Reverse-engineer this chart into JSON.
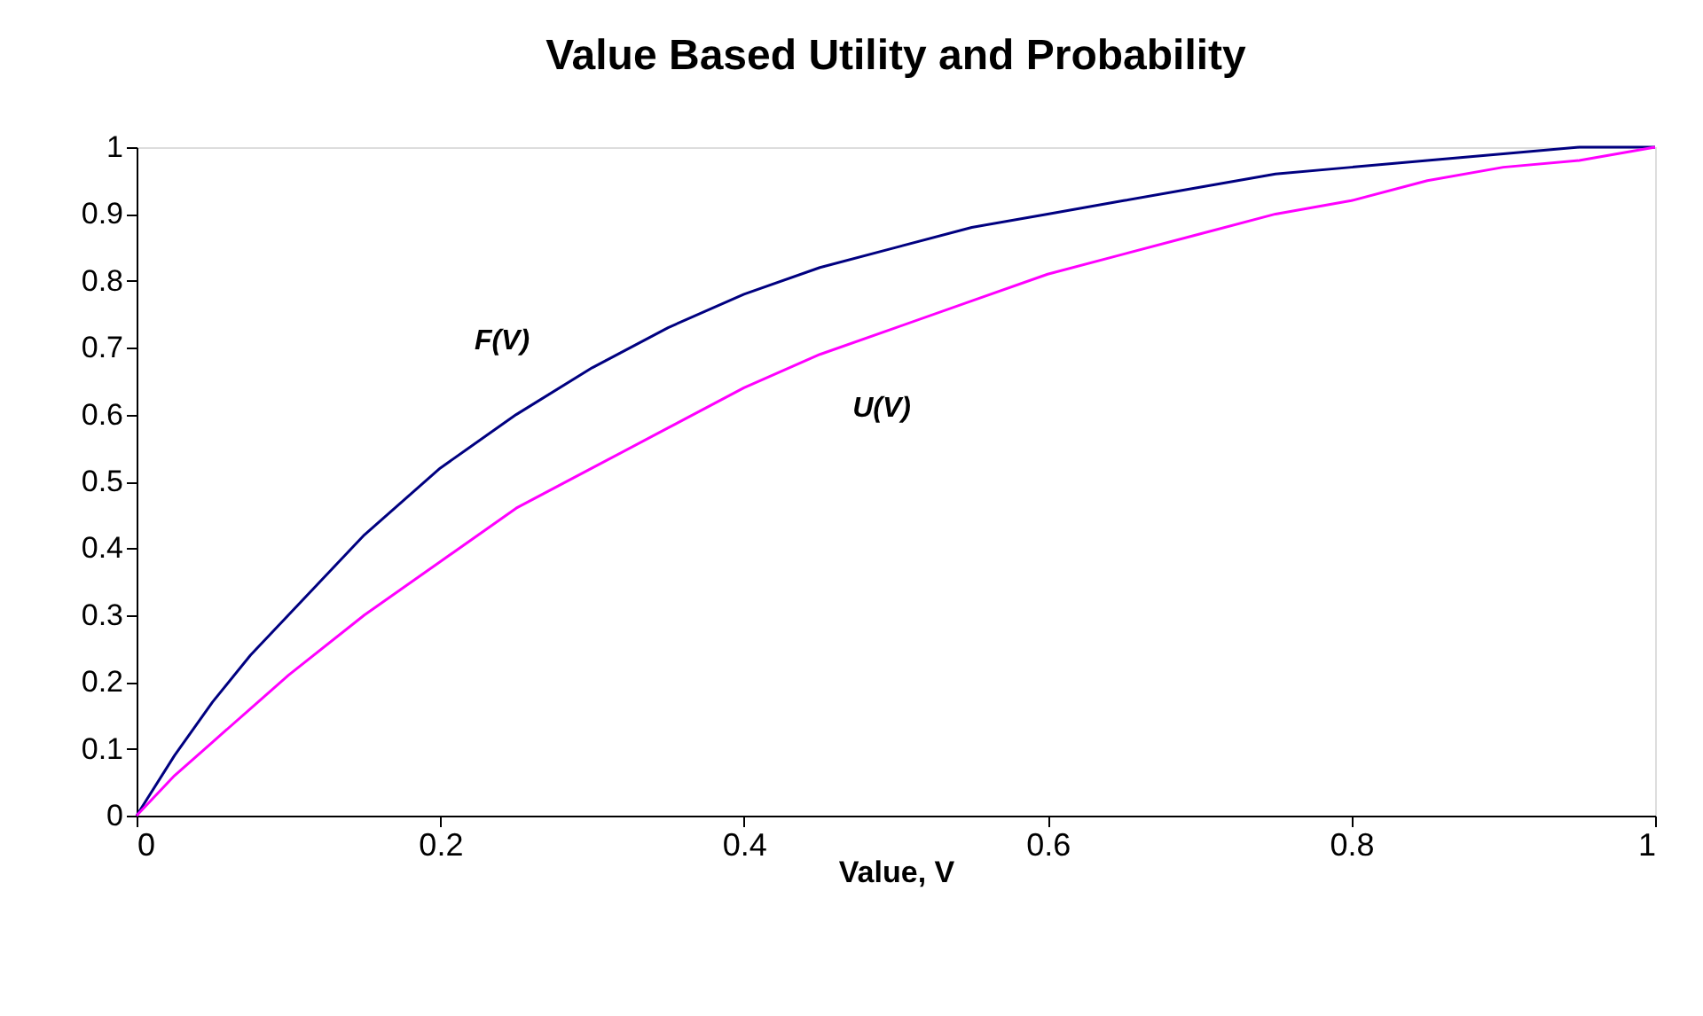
{
  "chart_data": {
    "type": "line",
    "title": "Value Based Utility and Probability",
    "xlabel": "Value, V",
    "x": [
      0,
      0.025,
      0.05,
      0.075,
      0.1,
      0.15,
      0.2,
      0.25,
      0.3,
      0.35,
      0.4,
      0.45,
      0.5,
      0.55,
      0.6,
      0.65,
      0.7,
      0.75,
      0.8,
      0.85,
      0.9,
      0.95,
      1
    ],
    "series": [
      {
        "name": "F(V)",
        "color": "#000080",
        "values": [
          0,
          0.09,
          0.17,
          0.24,
          0.3,
          0.42,
          0.52,
          0.6,
          0.67,
          0.73,
          0.78,
          0.82,
          0.85,
          0.88,
          0.9,
          0.92,
          0.94,
          0.96,
          0.97,
          0.98,
          0.99,
          1,
          1
        ]
      },
      {
        "name": "U(V)",
        "color": "#ff00ff",
        "values": [
          0,
          0.06,
          0.11,
          0.16,
          0.21,
          0.3,
          0.38,
          0.46,
          0.52,
          0.58,
          0.64,
          0.69,
          0.73,
          0.77,
          0.81,
          0.84,
          0.87,
          0.9,
          0.92,
          0.95,
          0.97,
          0.98,
          1
        ]
      }
    ],
    "xlim": [
      0,
      1
    ],
    "ylim": [
      0,
      1
    ],
    "xticks": [
      0,
      0.2,
      0.4,
      0.6,
      0.8,
      1
    ],
    "yticks": [
      0,
      0.1,
      0.2,
      0.3,
      0.4,
      0.5,
      0.6,
      0.7,
      0.8,
      0.9,
      1
    ],
    "grid": false,
    "legend": false,
    "marker": "none",
    "line_style": "solid"
  }
}
